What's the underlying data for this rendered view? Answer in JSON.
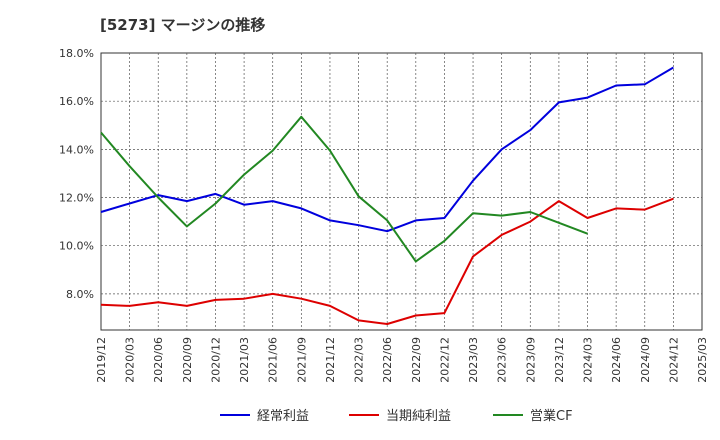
{
  "chart_data": {
    "type": "line",
    "title": "[5273]  マージンの推移",
    "categories": [
      "2019/12",
      "2020/03",
      "2020/06",
      "2020/09",
      "2020/12",
      "2021/03",
      "2021/06",
      "2021/09",
      "2021/12",
      "2022/03",
      "2022/06",
      "2022/09",
      "2022/12",
      "2023/03",
      "2023/06",
      "2023/09",
      "2023/12",
      "2024/03",
      "2024/06",
      "2024/09",
      "2024/12",
      "2025/03"
    ],
    "y_ticks": [
      "8.0%",
      "10.0%",
      "12.0%",
      "14.0%",
      "16.0%",
      "18.0%"
    ],
    "ylim": [
      6.5,
      18.0
    ],
    "grid": true,
    "legend_position": "bottom",
    "series": [
      {
        "name": "経常利益",
        "color": "#0000dd",
        "values": [
          11.4,
          11.75,
          12.1,
          11.85,
          12.15,
          11.7,
          11.85,
          11.55,
          11.05,
          10.85,
          10.6,
          11.05,
          11.15,
          12.7,
          14.0,
          14.8,
          15.95,
          16.15,
          16.65,
          16.7,
          17.4,
          null
        ]
      },
      {
        "name": "当期純利益",
        "color": "#dd0000",
        "values": [
          7.55,
          7.5,
          7.65,
          7.5,
          7.75,
          7.8,
          8.0,
          7.8,
          7.5,
          6.9,
          6.75,
          7.1,
          7.2,
          9.55,
          10.45,
          11.0,
          11.85,
          11.15,
          11.55,
          11.5,
          11.95,
          null
        ]
      },
      {
        "name": "営業CF",
        "color": "#228822",
        "values": [
          14.7,
          13.3,
          12.0,
          10.8,
          11.75,
          12.95,
          13.95,
          15.35,
          13.95,
          12.05,
          11.05,
          9.35,
          10.2,
          11.35,
          11.25,
          11.4,
          10.95,
          10.5,
          null,
          null,
          null,
          null
        ]
      }
    ]
  }
}
